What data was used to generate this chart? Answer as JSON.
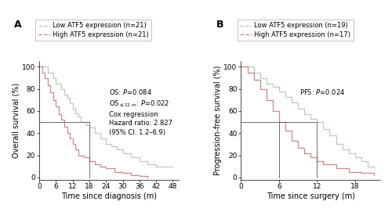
{
  "panel_A": {
    "title": "A",
    "xlabel": "Time since diagnosis (m)",
    "ylabel": "Overall survival (%)",
    "xlim": [
      0,
      50
    ],
    "ylim": [
      -2,
      105
    ],
    "xticks": [
      0,
      6,
      12,
      18,
      24,
      30,
      36,
      42,
      48
    ],
    "yticks": [
      0,
      20,
      40,
      60,
      80,
      100
    ],
    "median_line_x": 18,
    "median_line_y": 50,
    "low_color": "#b8cdb5",
    "high_color": "#cc8888",
    "legend_labels": [
      "Low ATF5 expression (n=21)",
      "High ATF5 expression (n=21)"
    ],
    "low_times": [
      0,
      2,
      3,
      4,
      5,
      6,
      7,
      8,
      9,
      10,
      11,
      12,
      13,
      14,
      15,
      17,
      18,
      20,
      22,
      24,
      26,
      28,
      30,
      33,
      36,
      39,
      42,
      45,
      48
    ],
    "low_surv": [
      100,
      100,
      95,
      95,
      90,
      85,
      85,
      80,
      75,
      72,
      67,
      62,
      58,
      55,
      50,
      47,
      45,
      40,
      35,
      30,
      28,
      25,
      22,
      18,
      15,
      12,
      10,
      10,
      10
    ],
    "high_times": [
      0,
      1,
      2,
      3,
      4,
      5,
      6,
      7,
      8,
      9,
      10,
      11,
      12,
      13,
      14,
      16,
      18,
      20,
      22,
      24,
      27,
      30,
      33,
      36,
      39
    ],
    "high_surv": [
      100,
      95,
      90,
      83,
      77,
      70,
      64,
      57,
      52,
      46,
      40,
      35,
      30,
      25,
      20,
      18,
      15,
      12,
      10,
      8,
      5,
      4,
      2,
      1,
      0
    ]
  },
  "panel_B": {
    "title": "B",
    "xlabel": "Time since surgery (m)",
    "ylabel": "Progression-free survival (%)",
    "xlim": [
      0,
      22
    ],
    "ylim": [
      -2,
      105
    ],
    "xticks": [
      0,
      6,
      12,
      18
    ],
    "yticks": [
      0,
      20,
      40,
      60,
      80,
      100
    ],
    "median_line_low_x": 12,
    "median_line_high_x": 6,
    "median_line_y": 50,
    "low_color": "#b8cdb5",
    "high_color": "#cc8888",
    "legend_labels": [
      "Low ATF5 expression (n=19)",
      "High ATF5 expression (n=17)"
    ],
    "low_times": [
      0,
      1,
      2,
      3,
      4,
      5,
      6,
      7,
      8,
      9,
      10,
      11,
      12,
      13,
      14,
      15,
      16,
      17,
      18,
      19,
      20,
      21
    ],
    "low_surv": [
      100,
      100,
      95,
      90,
      85,
      82,
      78,
      73,
      68,
      62,
      57,
      53,
      50,
      44,
      38,
      30,
      25,
      22,
      18,
      15,
      10,
      8
    ],
    "high_times": [
      0,
      1,
      2,
      3,
      4,
      5,
      6,
      7,
      8,
      9,
      10,
      11,
      12,
      13,
      15,
      17,
      19,
      21
    ],
    "high_surv": [
      100,
      95,
      88,
      80,
      70,
      60,
      50,
      42,
      33,
      27,
      22,
      18,
      15,
      12,
      8,
      5,
      4,
      2
    ]
  },
  "figure_bg": "#ffffff",
  "axes_bg": "#ffffff",
  "font_size": 7,
  "tick_font_size": 6.5,
  "legend_fontsize": 6.0,
  "ann_fontsize": 6.0
}
